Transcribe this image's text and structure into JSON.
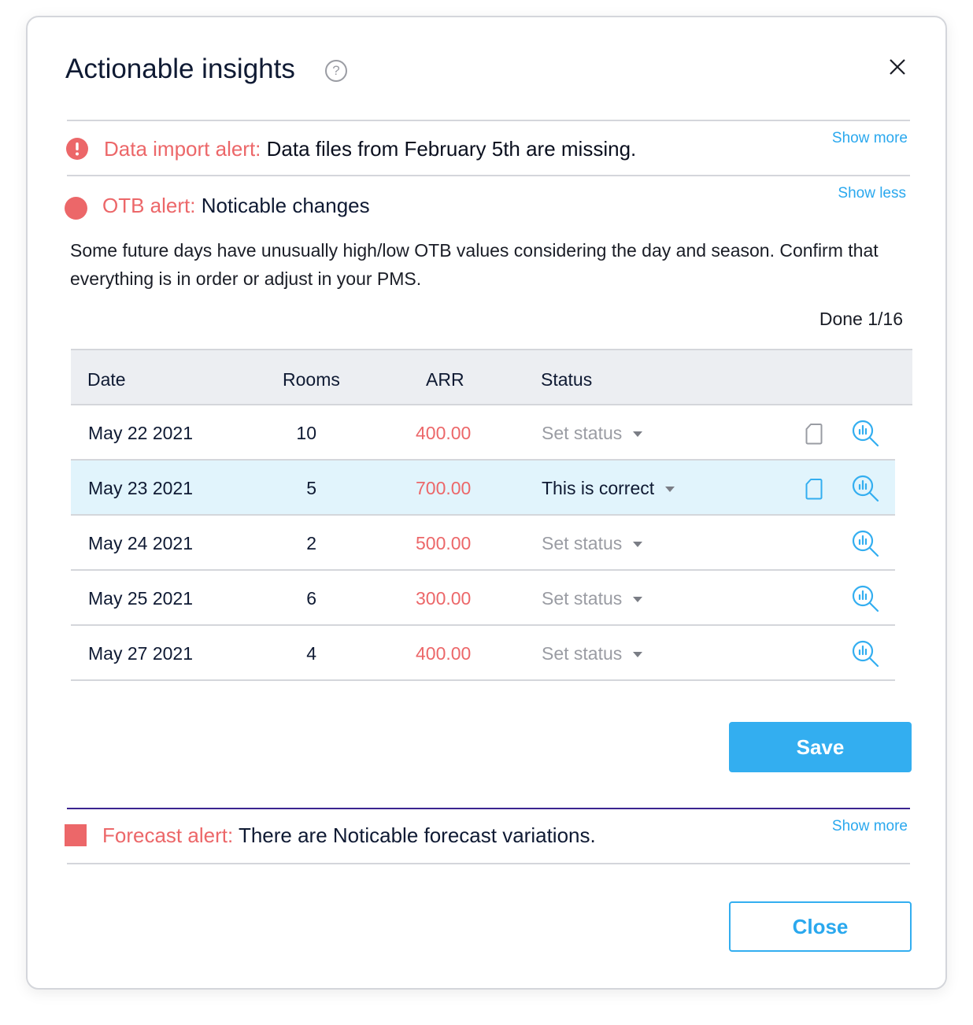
{
  "title": "Actionable insights",
  "help_icon": "?",
  "alerts": {
    "data_import": {
      "label": "Data import alert:",
      "message": "Data files from February 5th are missing.",
      "toggle": "Show more"
    },
    "otb": {
      "label": "OTB alert:",
      "message": "Noticable changes",
      "toggle": "Show less",
      "description": "Some future days have unusually high/low OTB values considering the day and season. Confirm that everything is in order or adjust in your PMS.",
      "progress": "Done 1/16"
    },
    "forecast": {
      "label": "Forecast alert:",
      "message": "There are Noticable forecast variations.",
      "toggle": "Show more"
    }
  },
  "table": {
    "headers": {
      "date": "Date",
      "rooms": "Rooms",
      "arr": "ARR",
      "status": "Status"
    },
    "rows": [
      {
        "date": "May 22 2021",
        "rooms": "10",
        "arr": "400.00",
        "status": "Set status",
        "selected": false,
        "note_icon": true
      },
      {
        "date": "May 23 2021",
        "rooms": "5",
        "arr": "700.00",
        "status": "This is correct",
        "selected": true,
        "note_icon": true
      },
      {
        "date": "May 24 2021",
        "rooms": "2",
        "arr": "500.00",
        "status": "Set status",
        "selected": false,
        "note_icon": false
      },
      {
        "date": "May 25 2021",
        "rooms": "6",
        "arr": "300.00",
        "status": "Set status",
        "selected": false,
        "note_icon": false
      },
      {
        "date": "May 27 2021",
        "rooms": "4",
        "arr": "400.00",
        "status": "Set status",
        "selected": false,
        "note_icon": false
      }
    ]
  },
  "buttons": {
    "save": "Save",
    "close": "Close"
  },
  "colors": {
    "alert": "#ec6769",
    "accent": "#33aef0",
    "highlight": "#e1f4fc",
    "divider_active": "#3b2490"
  }
}
